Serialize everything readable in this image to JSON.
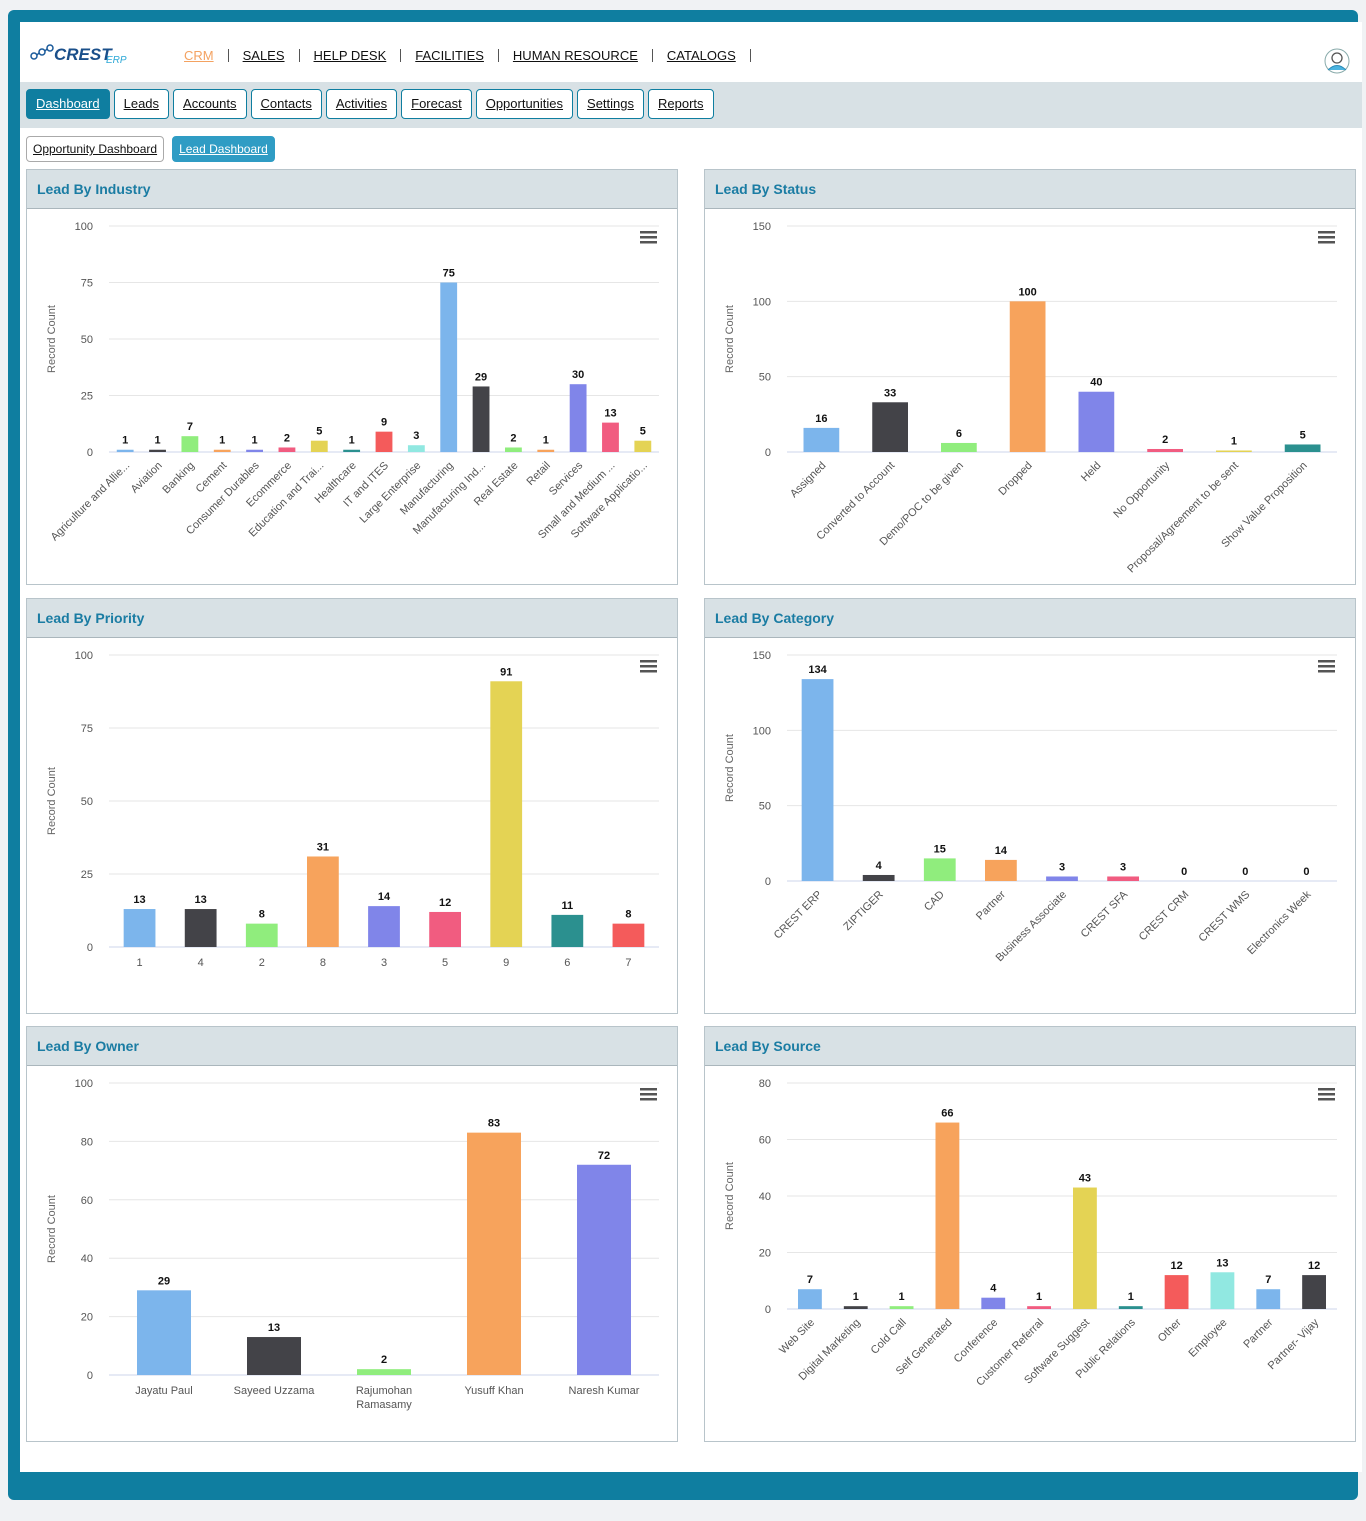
{
  "brand": {
    "name": "CREST",
    "suffix": "ERP"
  },
  "top_nav": [
    {
      "label": "CRM",
      "active": true
    },
    {
      "label": "SALES",
      "active": false
    },
    {
      "label": "HELP DESK",
      "active": false
    },
    {
      "label": "FACILITIES",
      "active": false
    },
    {
      "label": "HUMAN RESOURCE",
      "active": false
    },
    {
      "label": "CATALOGS",
      "active": false
    }
  ],
  "tabs": [
    {
      "label": "Dashboard",
      "active": true
    },
    {
      "label": "Leads"
    },
    {
      "label": "Accounts"
    },
    {
      "label": "Contacts"
    },
    {
      "label": "Activities"
    },
    {
      "label": "Forecast"
    },
    {
      "label": "Opportunities"
    },
    {
      "label": "Settings"
    },
    {
      "label": "Reports"
    }
  ],
  "subtabs": [
    {
      "label": "Opportunity Dashboard",
      "active": false
    },
    {
      "label": "Lead Dashboard",
      "active": true
    }
  ],
  "accent_color": "#0f7ea0",
  "chart_data": [
    {
      "title": "Lead By Industry",
      "type": "bar",
      "ylabel": "Record Count",
      "ylim": [
        0,
        100
      ],
      "yticks": [
        0,
        25,
        50,
        75,
        100
      ],
      "rotate_labels": true,
      "categories": [
        "Agriculture and Allie...",
        "Aviation",
        "Banking",
        "Cement",
        "Consumer Durables",
        "Ecommerce",
        "Education and Trai...",
        "Healthcare",
        "IT and ITES",
        "Large Enterprise",
        "Manufacturing",
        "Manufacturing Ind...",
        "Real Estate",
        "Retail",
        "Services",
        "Small and Medium ...",
        "Software Applicatio..."
      ],
      "values": [
        1,
        1,
        7,
        1,
        1,
        2,
        5,
        1,
        9,
        3,
        75,
        29,
        2,
        1,
        30,
        13,
        5
      ],
      "colors": [
        "#7cb5ec",
        "#434348",
        "#90ed7d",
        "#f7a35c",
        "#8085e9",
        "#f15c80",
        "#e4d354",
        "#2b908f",
        "#f45b5b",
        "#91e8e1",
        "#7cb5ec",
        "#434348",
        "#90ed7d",
        "#f7a35c",
        "#8085e9",
        "#f15c80",
        "#e4d354"
      ]
    },
    {
      "title": "Lead By Status",
      "type": "bar",
      "ylabel": "Record Count",
      "ylim": [
        0,
        150
      ],
      "yticks": [
        0,
        50,
        100,
        150
      ],
      "rotate_labels": true,
      "categories": [
        "Assigned",
        "Converted to Account",
        "Demo/POC to be given",
        "Dropped",
        "Held",
        "No Opportunity",
        "Proposal/Agreement to be sent",
        "Show Value Proposition"
      ],
      "values": [
        16,
        33,
        6,
        100,
        40,
        2,
        1,
        5
      ],
      "colors": [
        "#7cb5ec",
        "#434348",
        "#90ed7d",
        "#f7a35c",
        "#8085e9",
        "#f15c80",
        "#e4d354",
        "#2b908f"
      ]
    },
    {
      "title": "Lead By Priority",
      "type": "bar",
      "ylabel": "Record Count",
      "ylim": [
        0,
        100
      ],
      "yticks": [
        0,
        25,
        50,
        75,
        100
      ],
      "rotate_labels": false,
      "categories": [
        "1",
        "4",
        "2",
        "8",
        "3",
        "5",
        "9",
        "6",
        "7"
      ],
      "values": [
        13,
        13,
        8,
        31,
        14,
        12,
        91,
        11,
        8
      ],
      "colors": [
        "#7cb5ec",
        "#434348",
        "#90ed7d",
        "#f7a35c",
        "#8085e9",
        "#f15c80",
        "#e4d354",
        "#2b908f",
        "#f45b5b"
      ]
    },
    {
      "title": "Lead By Category",
      "type": "bar",
      "ylabel": "Record Count",
      "ylim": [
        0,
        150
      ],
      "yticks": [
        0,
        50,
        100,
        150
      ],
      "rotate_labels": true,
      "categories": [
        "CREST ERP",
        "ZIPTIGER",
        "CAD",
        "Partner",
        "Business Associate",
        "CREST SFA",
        "CREST CRM",
        "CREST WMS",
        "Electronics Week"
      ],
      "values": [
        134,
        4,
        15,
        14,
        3,
        3,
        0,
        0,
        0
      ],
      "colors": [
        "#7cb5ec",
        "#434348",
        "#90ed7d",
        "#f7a35c",
        "#8085e9",
        "#f15c80",
        "#e4d354",
        "#2b908f",
        "#f45b5b"
      ]
    },
    {
      "title": "Lead By Owner",
      "type": "bar",
      "ylabel": "Record Count",
      "ylim": [
        0,
        100
      ],
      "yticks": [
        0,
        20,
        40,
        60,
        80,
        100
      ],
      "rotate_labels": false,
      "categories": [
        "Jayatu Paul",
        "Sayeed Uzzama",
        "Rajumohan Ramasamy",
        "Yusuff Khan",
        "Naresh Kumar"
      ],
      "values": [
        29,
        13,
        2,
        83,
        72
      ],
      "colors": [
        "#7cb5ec",
        "#434348",
        "#90ed7d",
        "#f7a35c",
        "#8085e9"
      ]
    },
    {
      "title": "Lead By Source",
      "type": "bar",
      "ylabel": "Record Count",
      "ylim": [
        0,
        80
      ],
      "yticks": [
        0,
        20,
        40,
        60,
        80
      ],
      "rotate_labels": true,
      "categories": [
        "Web Site",
        "Digital Marketing",
        "Cold Call",
        "Self Generated",
        "Conference",
        "Customer Referral",
        "Software Suggest",
        "Public Relations",
        "Other",
        "Employee",
        "Partner",
        "Partner- Vijay"
      ],
      "values": [
        7,
        1,
        1,
        66,
        4,
        1,
        43,
        1,
        12,
        13,
        7,
        12
      ],
      "colors": [
        "#7cb5ec",
        "#434348",
        "#90ed7d",
        "#f7a35c",
        "#8085e9",
        "#f15c80",
        "#e4d354",
        "#2b908f",
        "#f45b5b",
        "#91e8e1",
        "#7cb5ec",
        "#434348"
      ]
    }
  ]
}
